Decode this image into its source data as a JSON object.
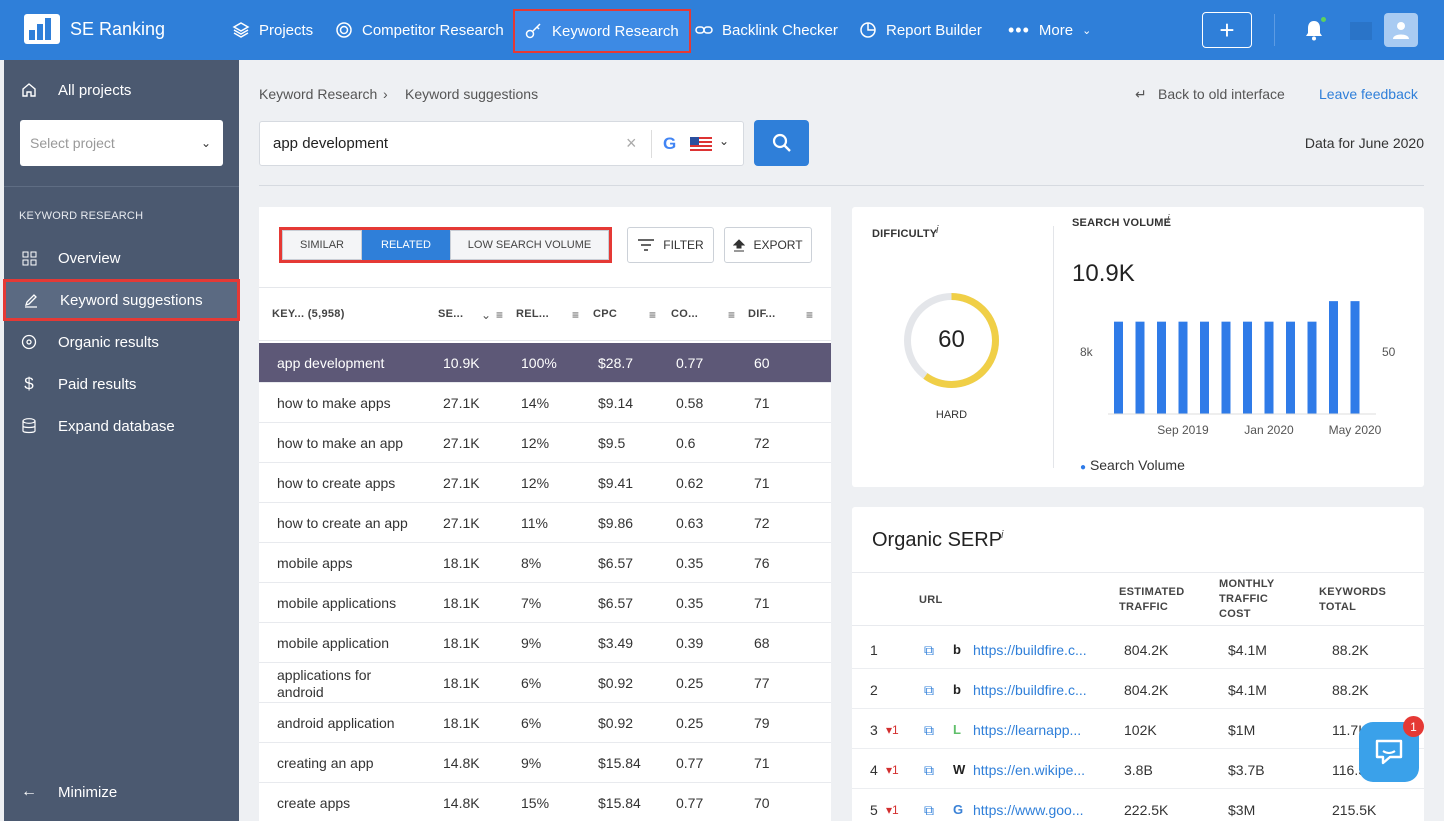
{
  "app": {
    "name": "SE Ranking"
  },
  "nav": {
    "projects": "Projects",
    "competitor": "Competitor Research",
    "keyword": "Keyword Research",
    "backlink": "Backlink Checker",
    "report": "Report Builder",
    "more": "More"
  },
  "notifications": {
    "chat_count": "1"
  },
  "sidebar": {
    "all_projects": "All projects",
    "select_placeholder": "Select project",
    "section": "KEYWORD RESEARCH",
    "items": [
      "Overview",
      "Keyword suggestions",
      "Organic results",
      "Paid results",
      "Expand database"
    ],
    "minimize": "Minimize"
  },
  "breadcrumb": {
    "root": "Keyword Research",
    "sep": "›",
    "current": "Keyword suggestions"
  },
  "links": {
    "back": "Back to old interface",
    "feedback": "Leave feedback"
  },
  "search": {
    "value": "app development",
    "clear": "×",
    "data_for": "Data for June 2020"
  },
  "tabs": {
    "similar": "SIMILAR",
    "related": "RELATED",
    "low": "LOW SEARCH VOLUME"
  },
  "tools": {
    "filter": "FILTER",
    "export": "EXPORT"
  },
  "table": {
    "headers": {
      "keyword": "KEY... (5,958)",
      "volume": "SE...",
      "relevance": "REL...",
      "cpc": "CPC",
      "competition": "CO...",
      "difficulty": "DIF..."
    },
    "rows": [
      {
        "kw": "app development",
        "vol": "10.9K",
        "rel": "100%",
        "cpc": "$28.7",
        "comp": "0.77",
        "dif": "60"
      },
      {
        "kw": "how to make apps",
        "vol": "27.1K",
        "rel": "14%",
        "cpc": "$9.14",
        "comp": "0.58",
        "dif": "71"
      },
      {
        "kw": "how to make an app",
        "vol": "27.1K",
        "rel": "12%",
        "cpc": "$9.5",
        "comp": "0.6",
        "dif": "72"
      },
      {
        "kw": "how to create apps",
        "vol": "27.1K",
        "rel": "12%",
        "cpc": "$9.41",
        "comp": "0.62",
        "dif": "71"
      },
      {
        "kw": "how to create an app",
        "vol": "27.1K",
        "rel": "11%",
        "cpc": "$9.86",
        "comp": "0.63",
        "dif": "72"
      },
      {
        "kw": "mobile apps",
        "vol": "18.1K",
        "rel": "8%",
        "cpc": "$6.57",
        "comp": "0.35",
        "dif": "76"
      },
      {
        "kw": "mobile applications",
        "vol": "18.1K",
        "rel": "7%",
        "cpc": "$6.57",
        "comp": "0.35",
        "dif": "71"
      },
      {
        "kw": "mobile application",
        "vol": "18.1K",
        "rel": "9%",
        "cpc": "$3.49",
        "comp": "0.39",
        "dif": "68"
      },
      {
        "kw": "applications for android",
        "vol": "18.1K",
        "rel": "6%",
        "cpc": "$0.92",
        "comp": "0.25",
        "dif": "77"
      },
      {
        "kw": "android application",
        "vol": "18.1K",
        "rel": "6%",
        "cpc": "$0.92",
        "comp": "0.25",
        "dif": "79"
      },
      {
        "kw": "creating an app",
        "vol": "14.8K",
        "rel": "9%",
        "cpc": "$15.84",
        "comp": "0.77",
        "dif": "71"
      },
      {
        "kw": "create apps",
        "vol": "14.8K",
        "rel": "15%",
        "cpc": "$15.84",
        "comp": "0.77",
        "dif": "70"
      }
    ]
  },
  "difficulty": {
    "title": "DIFFICULTY",
    "info": "i",
    "value": "60",
    "percent": 60,
    "label": "HARD",
    "color": "#f0cf47"
  },
  "volume": {
    "title": "SEARCH VOLUME",
    "info": "i",
    "value": "10.9K",
    "left_tick": "8k",
    "right_tick": "50",
    "x_labels": [
      "Sep 2019",
      "Jan 2020",
      "May 2020"
    ],
    "legend": "Search Volume",
    "bar_color": "#2f7be8"
  },
  "chart_data": {
    "type": "bar",
    "categories": [
      "",
      "",
      "",
      "",
      "",
      "",
      "",
      "",
      "",
      "",
      "",
      ""
    ],
    "values": [
      8100,
      8100,
      8100,
      8100,
      8100,
      8100,
      8100,
      8100,
      8100,
      8100,
      9900,
      9900
    ],
    "x_tick_labels": [
      "Sep 2019",
      "Jan 2020",
      "May 2020"
    ],
    "series": [
      {
        "name": "Search Volume"
      }
    ],
    "ylim": [
      0,
      10000
    ]
  },
  "serp": {
    "title": "Organic SERP",
    "info": "i",
    "headers": {
      "url": "URL",
      "traffic": "ESTIMATED TRAFFIC",
      "cost": "MONTHLY TRAFFIC COST",
      "keywords": "KEYWORDS TOTAL"
    },
    "rows": [
      {
        "pos": "1",
        "change": "",
        "url": "https://buildfire.c...",
        "traffic": "804.2K",
        "cost": "$4.1M",
        "kws": "88.2K",
        "fav": "b"
      },
      {
        "pos": "2",
        "change": "",
        "url": "https://buildfire.c...",
        "traffic": "804.2K",
        "cost": "$4.1M",
        "kws": "88.2K",
        "fav": "b"
      },
      {
        "pos": "3",
        "change": "▾1",
        "url": "https://learnapp...",
        "traffic": "102K",
        "cost": "$1M",
        "kws": "11.7K",
        "fav": "L"
      },
      {
        "pos": "4",
        "change": "▾1",
        "url": "https://en.wikipe...",
        "traffic": "3.8B",
        "cost": "$3.7B",
        "kws": "116.5",
        "fav": "W"
      },
      {
        "pos": "5",
        "change": "▾1",
        "url": "https://www.goo...",
        "traffic": "222.5K",
        "cost": "$3M",
        "kws": "215.5K",
        "fav": "G"
      }
    ]
  }
}
